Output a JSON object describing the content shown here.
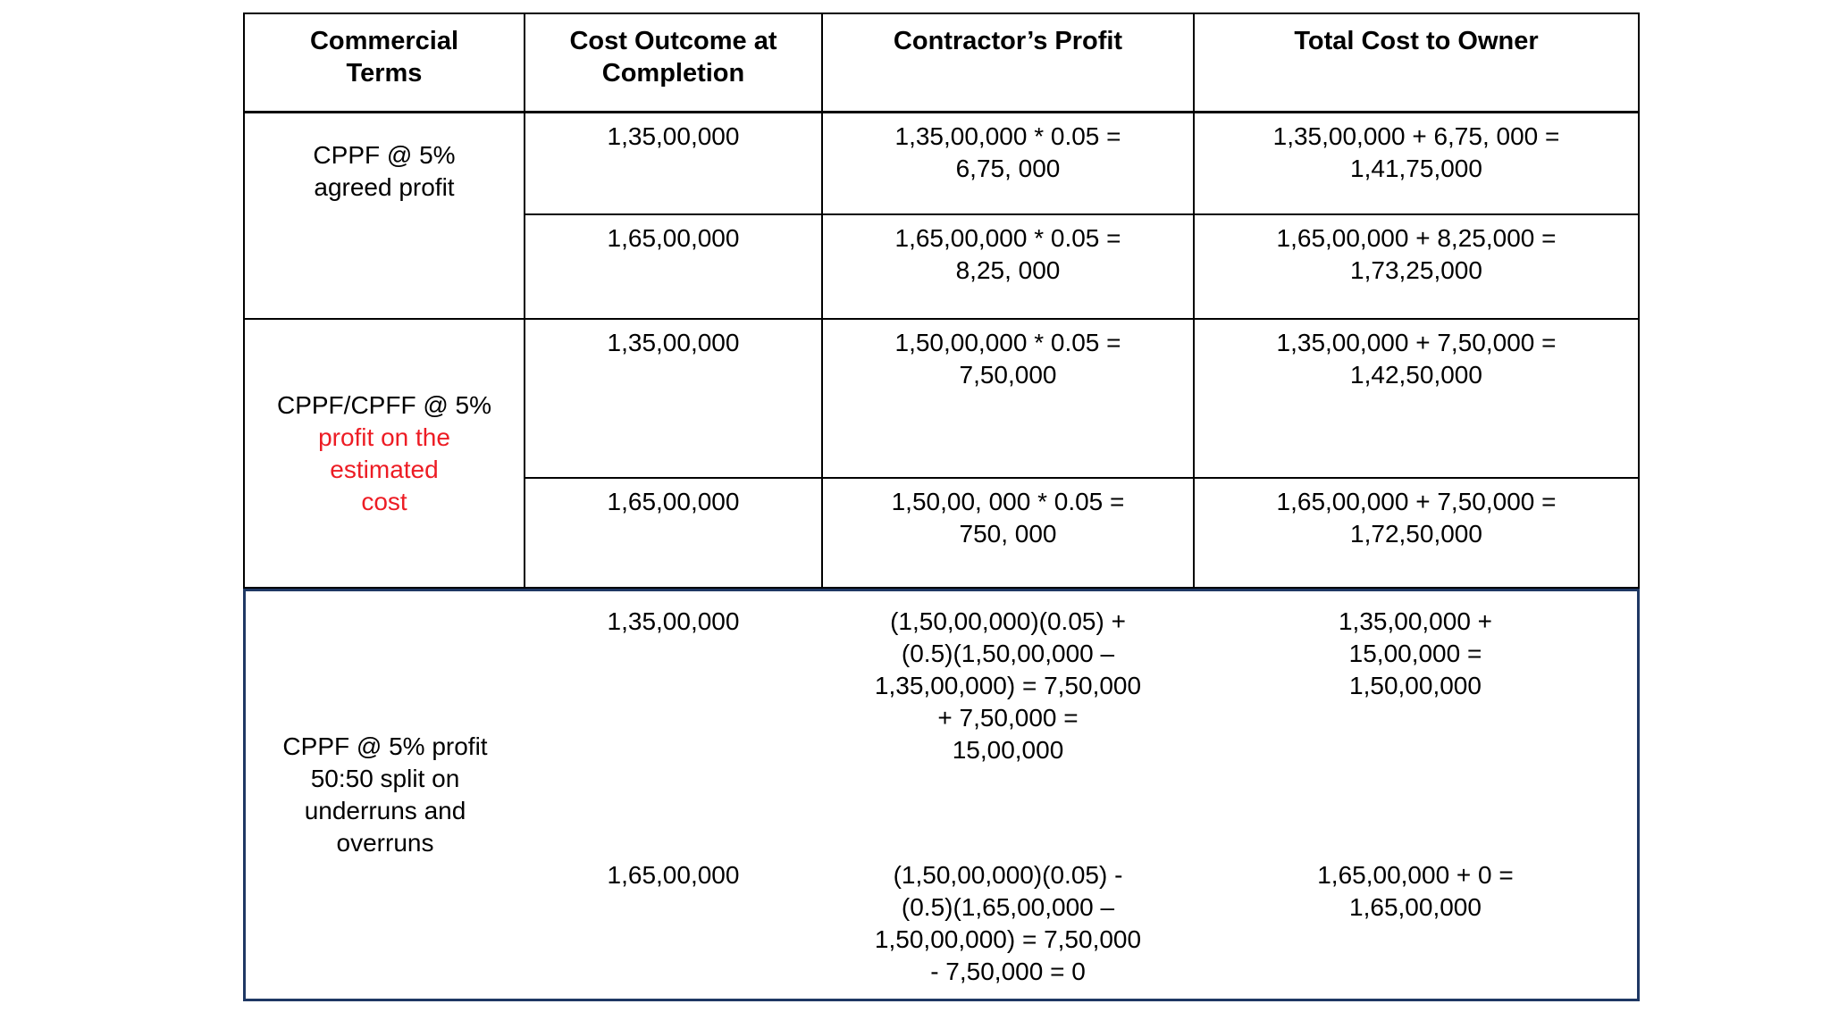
{
  "table": {
    "colors": {
      "black_text": "#000000",
      "red_text": "#ed1c24",
      "black_border": "#000000",
      "navy_border": "#1f3864"
    },
    "headers": {
      "commercial_terms": "Commercial\nTerms",
      "cost_outcome": "Cost Outcome at\nCompletion",
      "contractors_profit": "Contractor’s Profit",
      "total_cost": "Total Cost to Owner"
    },
    "sections": [
      {
        "term": "CPPF @ 5%\nagreed profit",
        "rows": [
          {
            "cost": "1,35,00,000",
            "profit": "1,35,00,000 * 0.05 =\n6,75, 000",
            "total": "1,35,00,000 + 6,75, 000 =\n1,41,75,000"
          },
          {
            "cost": "1,65,00,000",
            "profit": "1,65,00,000 * 0.05 =\n8,25, 000",
            "total": "1,65,00,000 + 8,25,000 =\n1,73,25,000"
          }
        ]
      },
      {
        "term_black": "CPPF/CPFF @ 5%",
        "term_red": "profit on the\nestimated\ncost",
        "rows": [
          {
            "cost": "1,35,00,000",
            "profit": "1,50,00,000 * 0.05 =\n7,50,000",
            "total": "1,35,00,000 + 7,50,000 =\n1,42,50,000"
          },
          {
            "cost": "1,65,00,000",
            "profit": "1,50,00, 000 * 0.05 =\n750, 000",
            "total": "1,65,00,000 + 7,50,000 =\n1,72,50,000"
          }
        ]
      },
      {
        "term": "CPPF @ 5% profit\n50:50 split on\nunderruns and\noverruns",
        "rows": [
          {
            "cost": "1,35,00,000",
            "profit": "(1,50,00,000)(0.05) +\n(0.5)(1,50,00,000 –\n1,35,00,000) = 7,50,000\n+ 7,50,000 =\n15,00,000",
            "total": "1,35,00,000 +\n15,00,000 =\n1,50,00,000"
          },
          {
            "cost": "1,65,00,000",
            "profit": "(1,50,00,000)(0.05) -\n(0.5)(1,65,00,000 –\n1,50,00,000) = 7,50,000\n- 7,50,000 = 0",
            "total": "1,65,00,000 + 0 =\n1,65,00,000"
          }
        ]
      }
    ]
  }
}
